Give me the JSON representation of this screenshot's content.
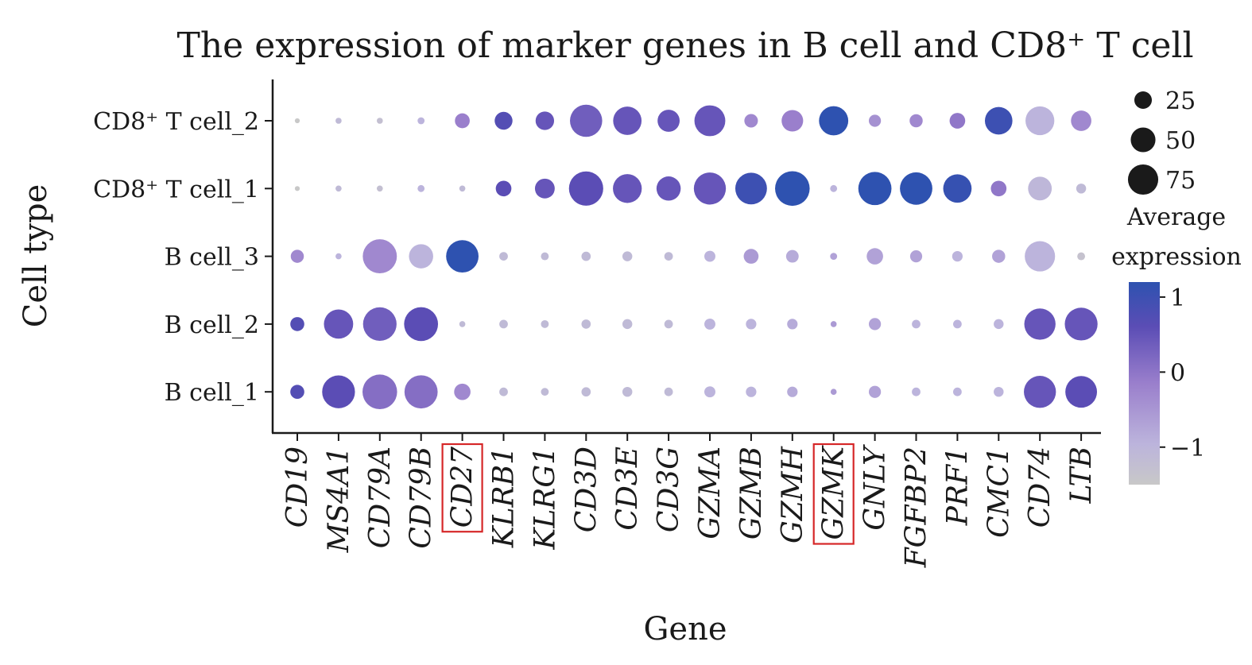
{
  "chart_data": {
    "type": "dotplot",
    "title": "The expression of marker genes in B cell and CD8⁺ T cell",
    "xlabel": "Gene",
    "ylabel": "Cell type",
    "genes": [
      "CD19",
      "MS4A1",
      "CD79A",
      "CD79B",
      "CD27",
      "KLRB1",
      "KLRG1",
      "CD3D",
      "CD3E",
      "CD3G",
      "GZMA",
      "GZMB",
      "GZMH",
      "GZMK",
      "GNLY",
      "FGFBP2",
      "PRF1",
      "CMC1",
      "CD74",
      "LTB"
    ],
    "highlighted_genes": [
      "CD27",
      "GZMK"
    ],
    "cell_types": [
      "CD8⁺ T cell_2",
      "CD8⁺ T cell_1",
      "B cell_3",
      "B cell_2",
      "B cell_1"
    ],
    "percent_expressed": [
      [
        2,
        3,
        3,
        4,
        18,
        26,
        28,
        85,
        66,
        40,
        78,
        15,
        38,
        70,
        12,
        14,
        20,
        62,
        68,
        34
      ],
      [
        2,
        3,
        3,
        4,
        3,
        20,
        32,
        96,
        68,
        48,
        84,
        82,
        98,
        4,
        90,
        86,
        66,
        20,
        46,
        8
      ],
      [
        14,
        3,
        95,
        48,
        86,
        6,
        5,
        7,
        8,
        6,
        10,
        18,
        13,
        4,
        22,
        12,
        9,
        14,
        75,
        5
      ],
      [
        16,
        70,
        92,
        94,
        3,
        6,
        5,
        7,
        8,
        6,
        10,
        9,
        9,
        3,
        12,
        6,
        6,
        8,
        80,
        88
      ],
      [
        16,
        88,
        98,
        90,
        22,
        6,
        5,
        7,
        8,
        6,
        10,
        9,
        9,
        3,
        12,
        6,
        6,
        8,
        84,
        82
      ]
    ],
    "average_expression": [
      [
        -1.5,
        -1.0,
        -1.2,
        -0.8,
        -0.2,
        0.5,
        0.3,
        0.2,
        0.3,
        0.3,
        0.3,
        -0.3,
        -0.2,
        1.0,
        -0.4,
        -0.3,
        -0.1,
        0.8,
        -0.8,
        -0.3
      ],
      [
        -1.5,
        -1.0,
        -1.2,
        -0.8,
        -1.0,
        0.4,
        0.3,
        0.4,
        0.3,
        0.3,
        0.3,
        0.8,
        1.0,
        -0.8,
        1.0,
        1.0,
        0.9,
        -0.1,
        -0.9,
        -1.0
      ],
      [
        -0.3,
        -0.8,
        -0.3,
        -0.8,
        1.0,
        -1.0,
        -1.0,
        -1.0,
        -1.0,
        -1.0,
        -0.8,
        -0.5,
        -0.7,
        -0.6,
        -0.6,
        -0.6,
        -0.8,
        -0.6,
        -0.8,
        -1.3
      ],
      [
        0.5,
        0.3,
        0.2,
        0.4,
        -1.0,
        -1.0,
        -1.0,
        -1.0,
        -1.0,
        -1.0,
        -0.8,
        -0.8,
        -0.7,
        -0.5,
        -0.6,
        -0.8,
        -0.8,
        -0.8,
        0.3,
        0.3
      ],
      [
        0.5,
        0.4,
        0.0,
        0.0,
        -0.3,
        -1.0,
        -1.0,
        -1.0,
        -1.0,
        -1.0,
        -0.8,
        -0.8,
        -0.7,
        -0.5,
        -0.6,
        -0.8,
        -0.8,
        -0.8,
        0.3,
        0.4
      ]
    ],
    "size_legend": {
      "values": [
        25,
        50,
        75
      ],
      "labels": [
        "25",
        "50",
        "75"
      ]
    },
    "color_legend": {
      "title_line1": "Average",
      "title_line2": "expression",
      "range": [
        -1.5,
        1.2
      ],
      "ticks": [
        1,
        0,
        -1
      ],
      "tick_labels": [
        "1",
        "0",
        "−1"
      ],
      "colors": [
        "#c8c8c8",
        "#bcb4dc",
        "#9a7fcc",
        "#5b4db5",
        "#2e52b0"
      ]
    }
  }
}
